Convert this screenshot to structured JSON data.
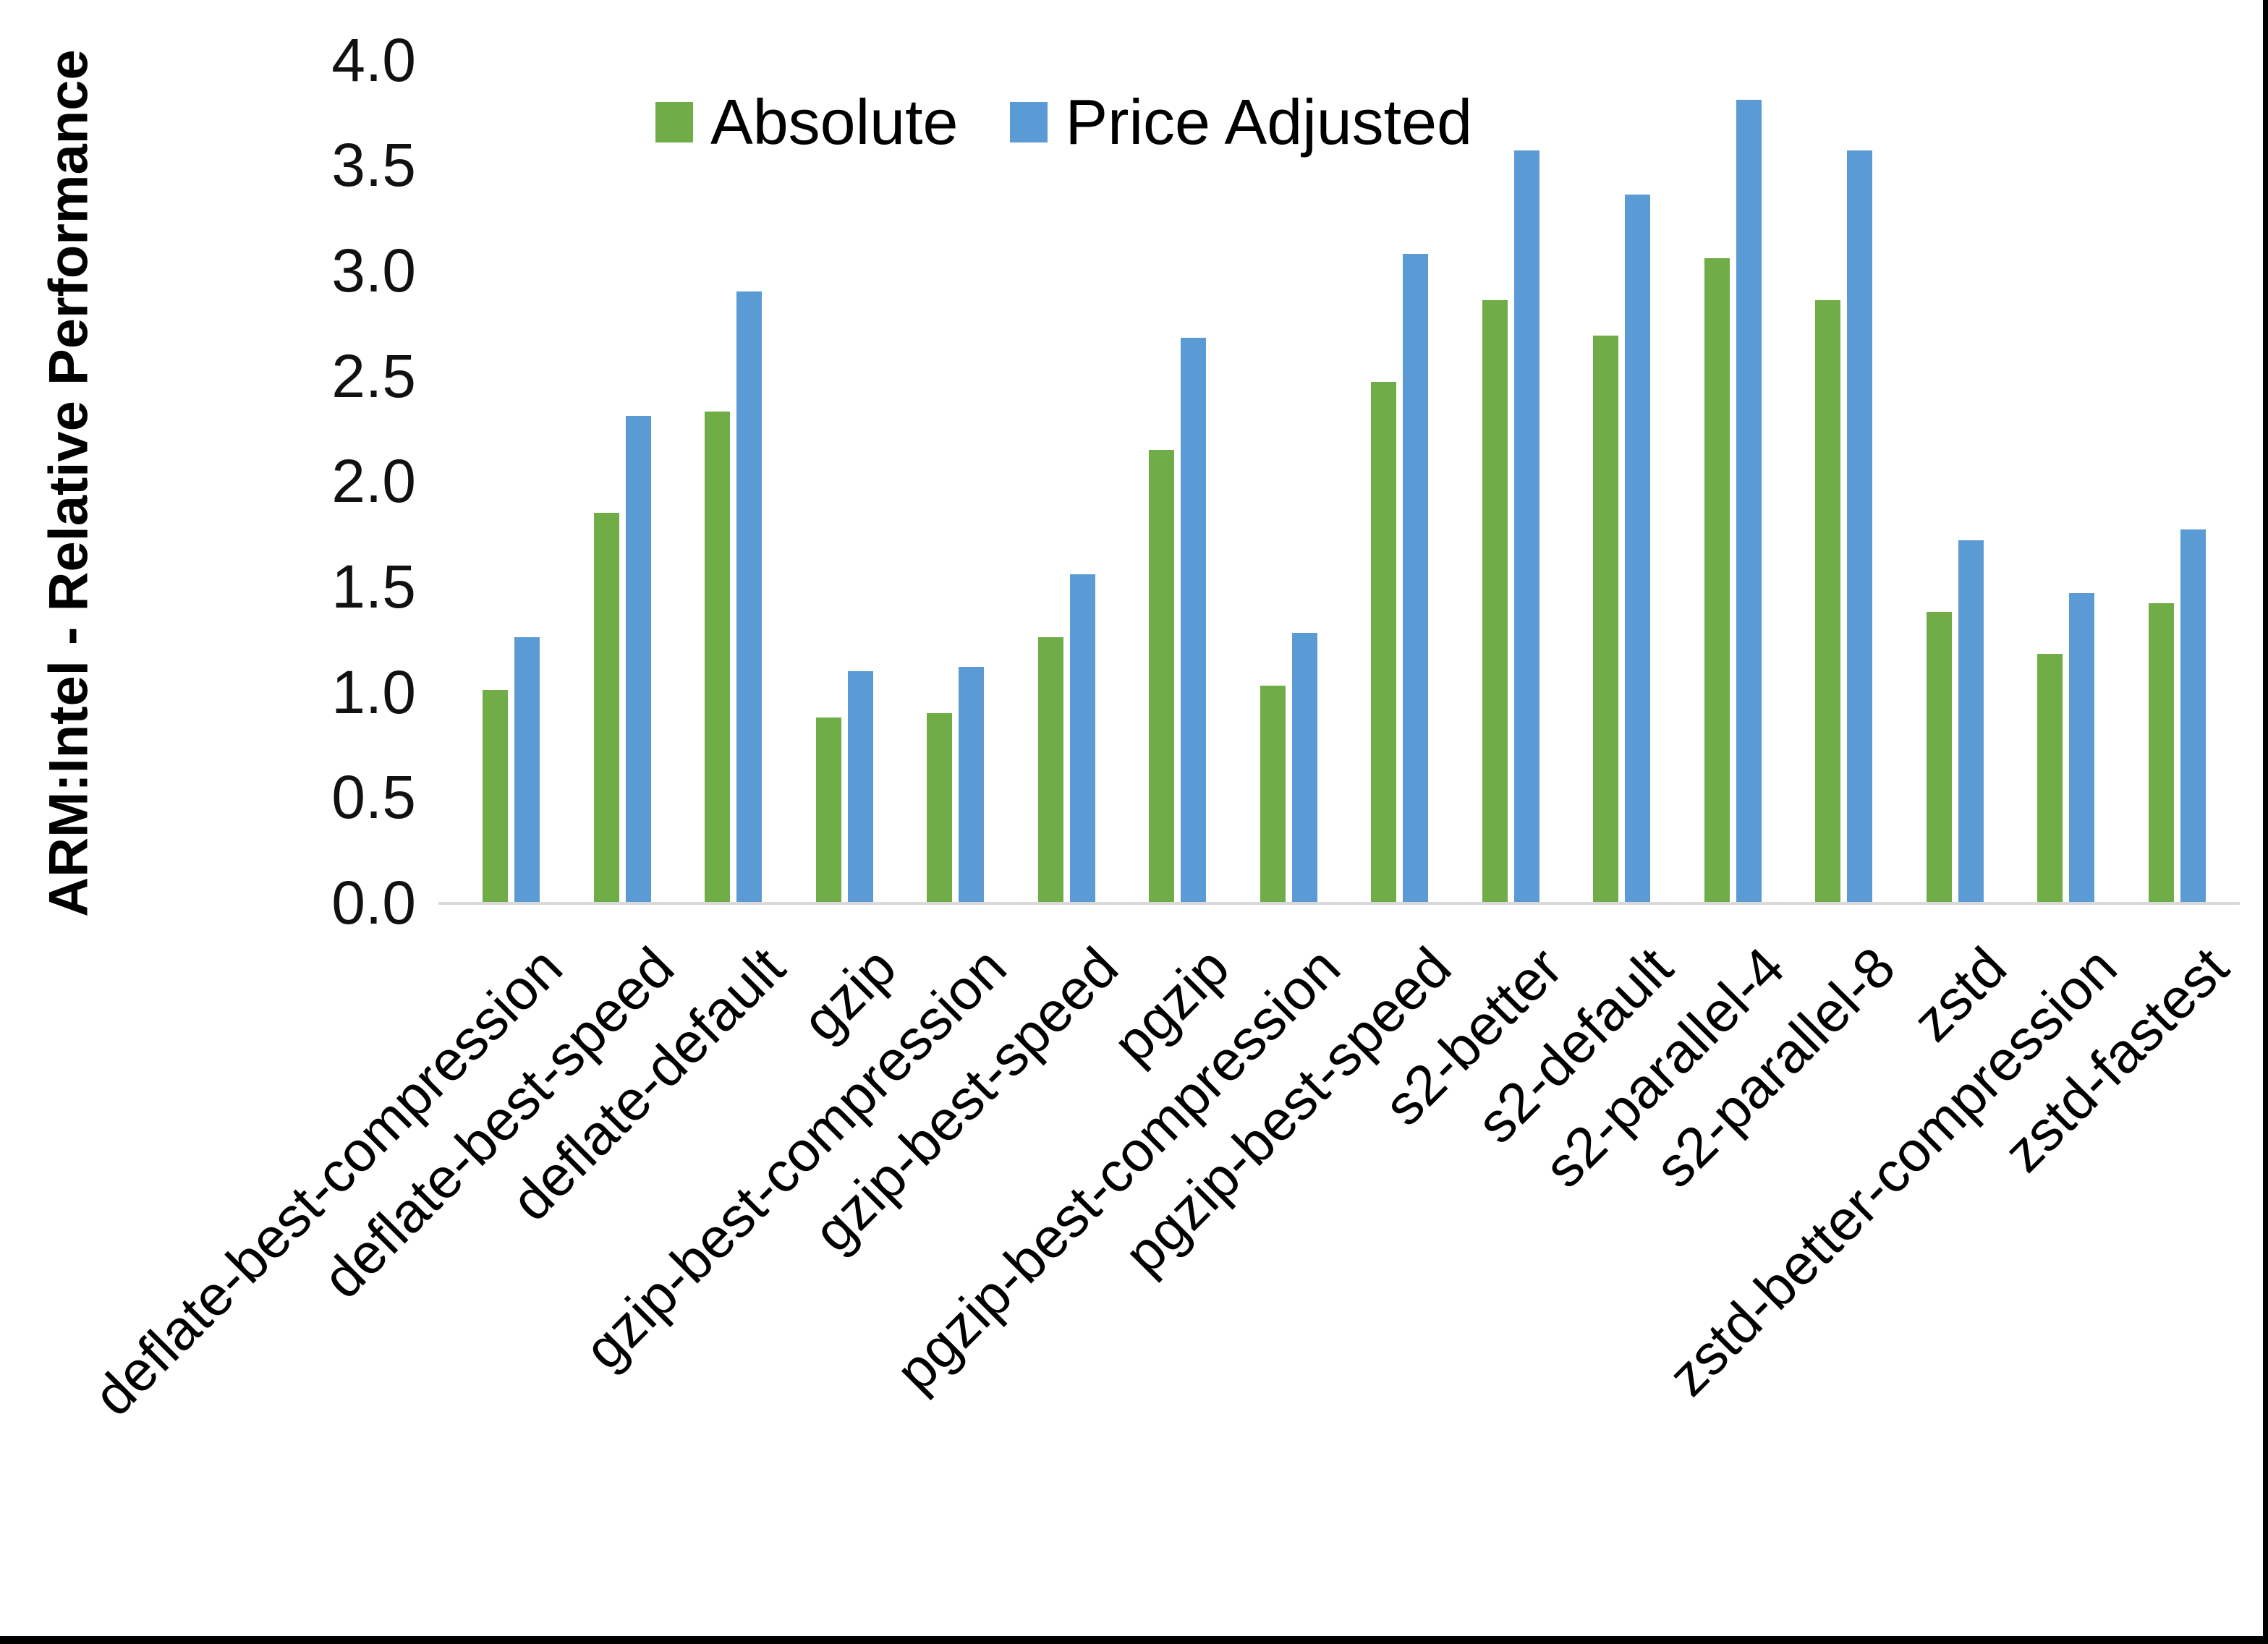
{
  "figure": {
    "y_axis_title": "ARM:Intel - Relative Performance"
  },
  "chart_data": {
    "type": "bar",
    "title": "",
    "xlabel": "",
    "ylabel": "ARM:Intel - Relative Performance",
    "ylim": [
      0.0,
      4.0
    ],
    "ytick_step": 0.5,
    "ytick_labels": [
      "0.0",
      "0.5",
      "1.0",
      "1.5",
      "2.0",
      "2.5",
      "3.0",
      "3.5",
      "4.0"
    ],
    "grid": false,
    "legend_position": "top-center",
    "background_color": "#ffffff",
    "axis_line_color": "#d9d9d9",
    "categories": [
      "deflate-best-compression",
      "deflate-best-speed",
      "deflate-default",
      "gzip",
      "gzip-best-compression",
      "gzip-best-speed",
      "pgzip",
      "pgzip-best-compression",
      "pgzip-best-speed",
      "s2-better",
      "s2-default",
      "s2-parallel-4",
      "s2-parallel-8",
      "zstd",
      "zstd-better-compression",
      "zstd-fastest"
    ],
    "series": [
      {
        "name": "Absolute",
        "color": "#70AD47",
        "values": [
          1.01,
          1.85,
          2.33,
          0.88,
          0.9,
          1.26,
          2.15,
          1.03,
          2.47,
          2.86,
          2.69,
          3.06,
          2.86,
          1.38,
          1.18,
          1.42
        ]
      },
      {
        "name": "Price Adjusted",
        "color": "#5B9BD5",
        "values": [
          1.26,
          2.31,
          2.9,
          1.1,
          1.12,
          1.56,
          2.68,
          1.28,
          3.08,
          3.57,
          3.36,
          3.81,
          3.57,
          1.72,
          1.47,
          1.77
        ]
      }
    ]
  }
}
